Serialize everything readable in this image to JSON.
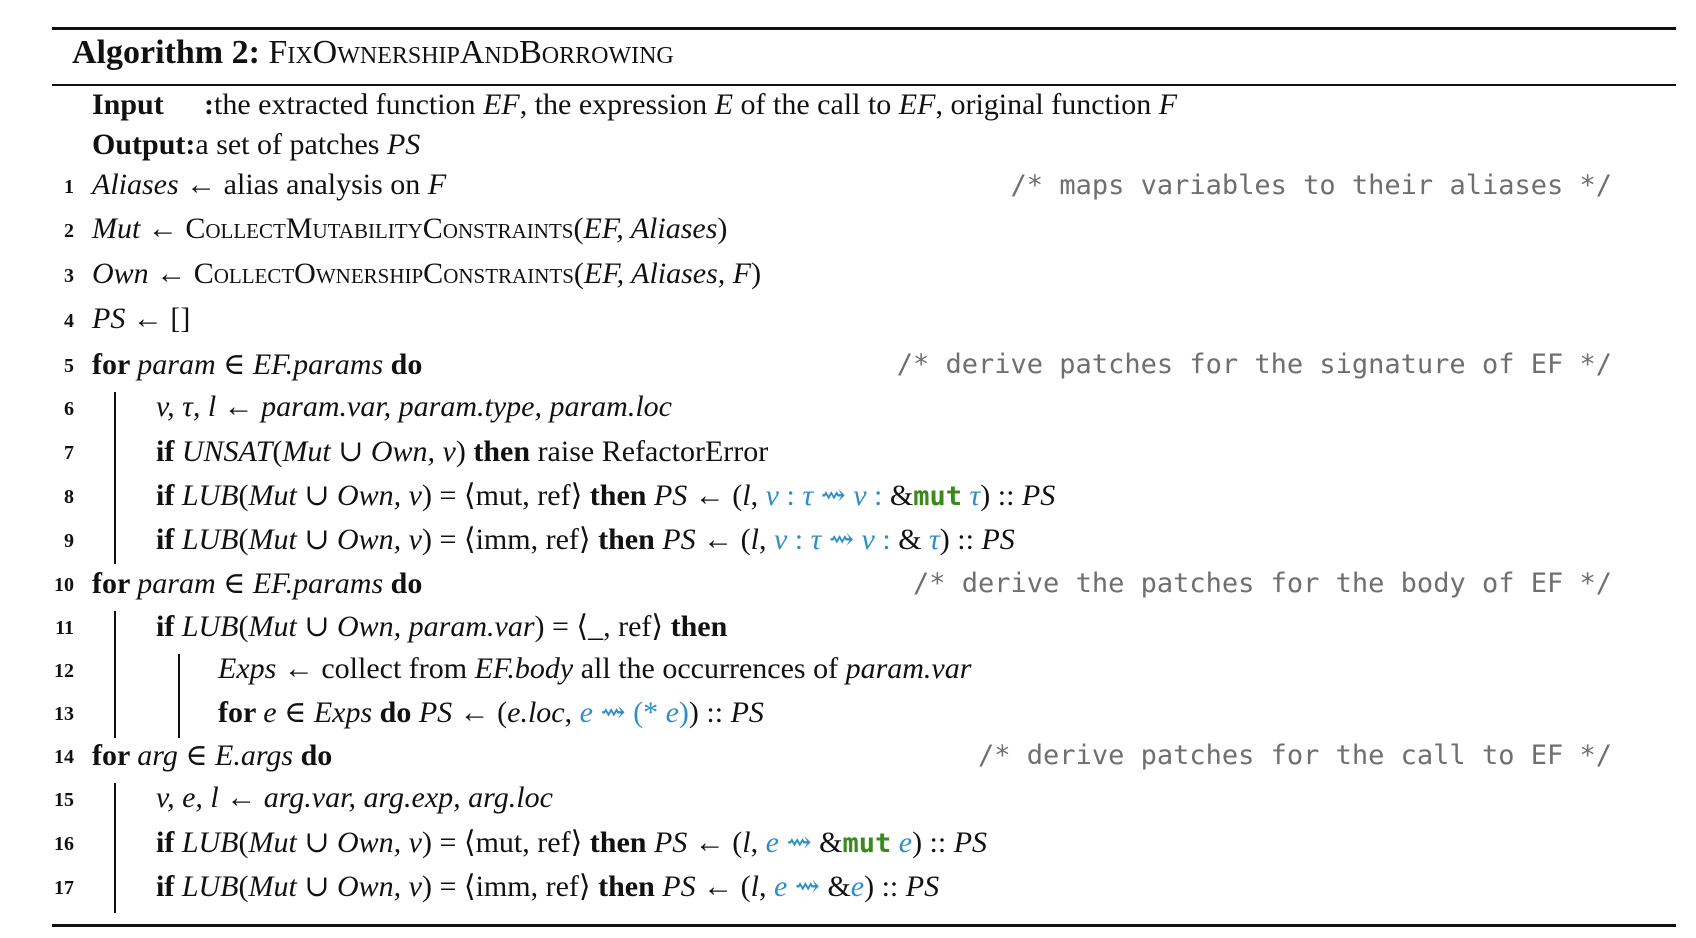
{
  "algorithm": {
    "label": "Algorithm 2:",
    "name": "FixOwnershipAndBorrowing"
  },
  "input": {
    "label": "Input",
    "colon": ":",
    "parts": [
      "the extracted function ",
      "EF",
      ", the expression ",
      "E",
      " of the call to ",
      "EF",
      ", original function ",
      "F"
    ]
  },
  "output": {
    "label": "Output",
    "colon": ":",
    "parts": [
      "a set of patches ",
      "PS"
    ]
  },
  "comments": {
    "c1": "/* maps variables to their aliases */",
    "c5": "/* derive patches for the signature of EF */",
    "c10": "/* derive the patches for the body of EF */",
    "c14": "/* derive patches for the call to EF */"
  },
  "lines": [
    {
      "num": "1",
      "p": [
        "Aliases",
        " ← alias analysis on ",
        "F"
      ]
    },
    {
      "num": "2",
      "p": [
        "Mut",
        " ← ",
        "CollectMutabilityConstraints",
        "(",
        "EF, Aliases",
        ")"
      ]
    },
    {
      "num": "3",
      "p": [
        "Own",
        " ← ",
        "CollectOwnershipConstraints",
        "(",
        "EF, Aliases, F",
        ")"
      ]
    },
    {
      "num": "4",
      "p": [
        "PS",
        " ← []"
      ]
    },
    {
      "num": "5",
      "p": [
        "for ",
        "param",
        " ∈ ",
        "EF.params",
        " do"
      ]
    },
    {
      "num": "6",
      "p": [
        "v, τ, l",
        " ← ",
        "param.var, param.type, param.loc"
      ]
    },
    {
      "num": "7",
      "p": [
        "if ",
        "UNSAT",
        "(",
        "Mut",
        " ∪ ",
        "Own, v",
        ") ",
        "then",
        "  raise RefactorError"
      ]
    },
    {
      "num": "8",
      "p": [
        "if ",
        "LUB",
        "(",
        "Mut",
        " ∪ ",
        "Own, v",
        ") = ⟨mut, ref⟩ ",
        "then ",
        "PS",
        " ← (",
        "l",
        ", ",
        "v",
        " : ",
        "τ",
        "  ⇝ ",
        "v",
        " : ",
        "&",
        "mut",
        " τ",
        ") :: ",
        "PS"
      ]
    },
    {
      "num": "9",
      "p": [
        "if ",
        "LUB",
        "(",
        "Mut",
        " ∪ ",
        "Own, v",
        ") = ⟨imm, ref⟩ ",
        "then ",
        "PS",
        " ← (",
        "l",
        ", ",
        "v",
        " : ",
        "τ",
        "  ⇝ ",
        "v",
        " : ",
        "& ",
        "τ",
        ") :: ",
        "PS"
      ]
    },
    {
      "num": "10",
      "p": [
        "for ",
        "param",
        " ∈ ",
        "EF.params",
        " do"
      ]
    },
    {
      "num": "11",
      "p": [
        "if ",
        "LUB",
        "(",
        "Mut",
        " ∪ ",
        "Own, param.var",
        ") = ⟨_, ref⟩ ",
        "then"
      ]
    },
    {
      "num": "12",
      "p": [
        "Exps",
        " ← collect from ",
        "EF.body",
        " all the occurrences of ",
        "param.var"
      ]
    },
    {
      "num": "13",
      "p": [
        "for ",
        "e",
        " ∈ ",
        "Exps",
        " do ",
        "PS",
        " ← (",
        "e.loc",
        ", ",
        "e",
        "  ⇝ ",
        "(* ",
        "e",
        ")",
        ") :: ",
        "PS"
      ]
    },
    {
      "num": "14",
      "p": [
        "for ",
        "arg",
        " ∈ ",
        "E.args",
        " do"
      ]
    },
    {
      "num": "15",
      "p": [
        "v, e, l",
        " ← ",
        "arg.var, arg.exp, arg.loc"
      ]
    },
    {
      "num": "16",
      "p": [
        "if ",
        "LUB",
        "(",
        "Mut",
        " ∪ ",
        "Own, v",
        ") = ⟨mut, ref⟩ ",
        "then ",
        "PS",
        " ← (",
        "l",
        ", ",
        "e",
        "  ⇝ ",
        "&",
        "mut",
        " e",
        ") :: ",
        "PS"
      ]
    },
    {
      "num": "17",
      "p": [
        "if ",
        "LUB",
        "(",
        "Mut",
        " ∪ ",
        "Own, v",
        ") = ⟨imm, ref⟩ ",
        "then ",
        "PS",
        " ← (",
        "l",
        ", ",
        "e",
        "  ⇝ ",
        "&",
        "e",
        ") :: ",
        "PS"
      ]
    }
  ]
}
